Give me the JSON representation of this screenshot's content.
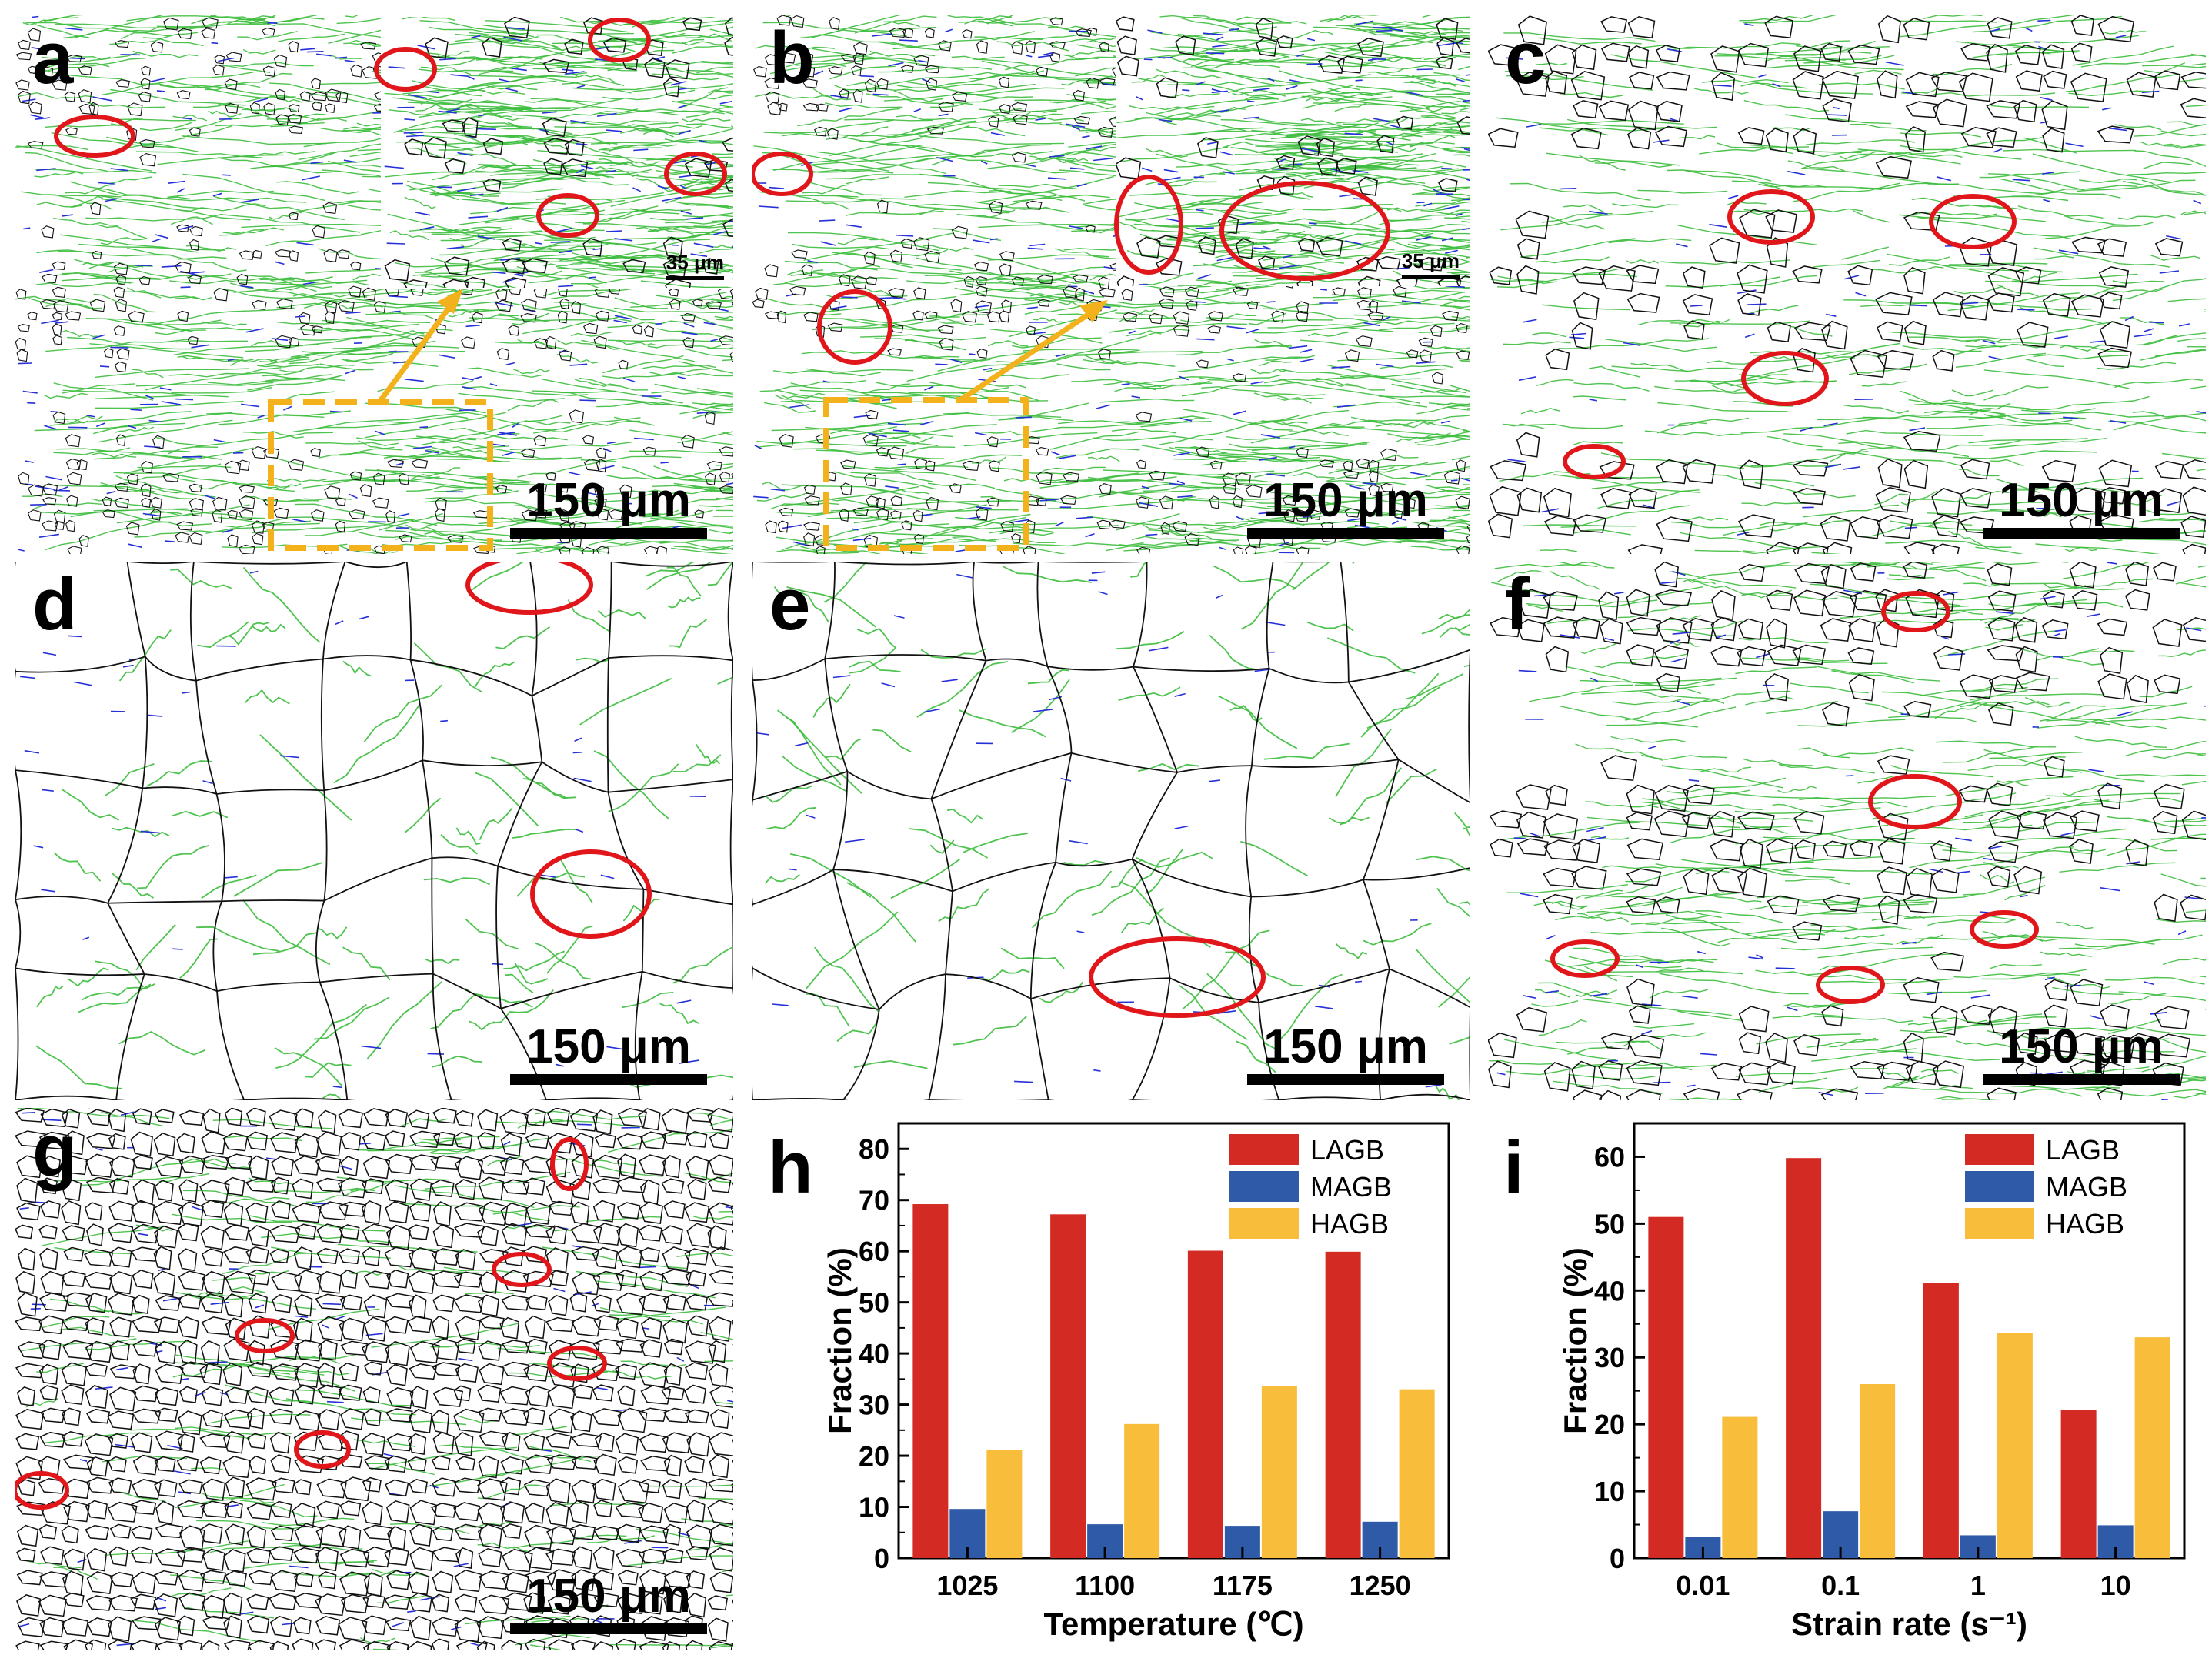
{
  "colors": {
    "lagb": "#d42a24",
    "magb": "#2e5aa8",
    "hagb": "#f7bd3b",
    "green_boundary": "#3cbc3c",
    "blue_boundary": "#2630d8",
    "black_boundary": "#111111",
    "circle": "#e0161a",
    "arrow": "#f3b21b"
  },
  "icons": {
    "circle_marker": "red-ellipse-marker",
    "zoom_arrow": "orange-arrow"
  },
  "panels": {
    "a": {
      "label": "a",
      "scale": "150 μm",
      "inset_scale": "35 μm"
    },
    "b": {
      "label": "b",
      "scale": "150 μm",
      "inset_scale": "35 μm"
    },
    "c": {
      "label": "c",
      "scale": "150 μm"
    },
    "d": {
      "label": "d",
      "scale": "150 μm"
    },
    "e": {
      "label": "e",
      "scale": "150 μm"
    },
    "f": {
      "label": "f",
      "scale": "150 μm"
    },
    "g": {
      "label": "g",
      "scale": "150 μm"
    }
  },
  "chart_data": [
    {
      "panel_label": "h",
      "type": "bar",
      "categories": [
        "1025",
        "1100",
        "1175",
        "1250"
      ],
      "series": [
        {
          "name": "LAGB",
          "values": [
            69.2,
            67.2,
            60.1,
            59.9
          ]
        },
        {
          "name": "MAGB",
          "values": [
            9.6,
            6.6,
            6.3,
            7.1
          ]
        },
        {
          "name": "HAGB",
          "values": [
            21.2,
            26.2,
            33.6,
            33.0
          ]
        }
      ],
      "xlabel": "Temperature (℃)",
      "ylabel": "Fraction (%)",
      "ylim": [
        0,
        85
      ],
      "yticks": [
        0,
        10,
        20,
        30,
        40,
        50,
        60,
        70,
        80
      ],
      "legend": "top-right",
      "grid": false
    },
    {
      "panel_label": "i",
      "type": "bar",
      "categories": [
        "0.01",
        "0.1",
        "1",
        "10"
      ],
      "series": [
        {
          "name": "LAGB",
          "values": [
            51.0,
            59.8,
            41.1,
            22.2
          ]
        },
        {
          "name": "MAGB",
          "values": [
            3.2,
            7.0,
            3.4,
            4.9
          ]
        },
        {
          "name": "HAGB",
          "values": [
            21.1,
            26.0,
            33.6,
            33.0
          ]
        }
      ],
      "xlabel": "Strain rate (s⁻¹)",
      "ylabel": "Fraction (%)",
      "ylim": [
        0,
        65
      ],
      "yticks": [
        0,
        10,
        20,
        30,
        40,
        50,
        60
      ],
      "legend": "top-right",
      "grid": false
    }
  ]
}
